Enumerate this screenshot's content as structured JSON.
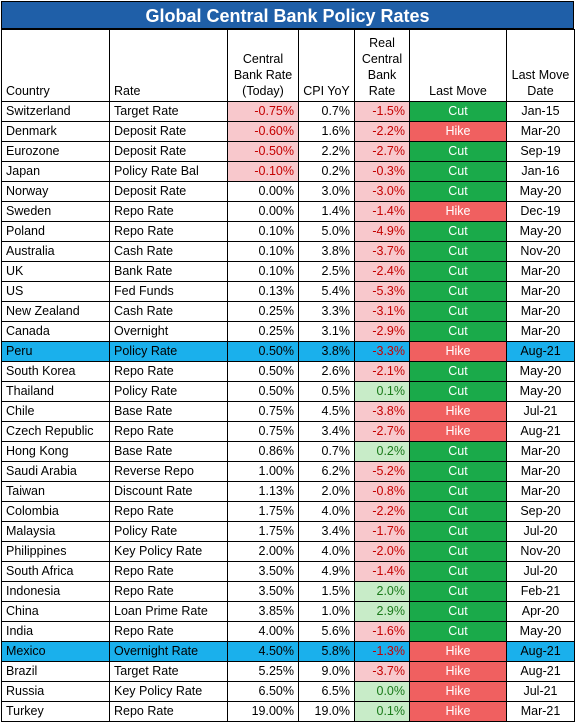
{
  "title": "Global Central Bank Policy Rates",
  "colors": {
    "header_bg": "#1f5fa8",
    "highlight_row": "#1ab0ec",
    "negative_fill": "#f8c8cc",
    "positive_fill": "#c8ecc8",
    "cut": "#1aaa4a",
    "hike": "#f06060"
  },
  "columns": {
    "country": "Country",
    "rate": "Rate",
    "cb_rate": "Central Bank Rate (Today)",
    "cpi": "CPI YoY",
    "real_rate": "Real Central Bank Rate",
    "last_move": "Last Move",
    "last_move_date": "Last Move Date"
  },
  "chart_data": {
    "type": "table",
    "title": "Global Central Bank Policy Rates",
    "headers": [
      "Country",
      "Rate",
      "Central Bank Rate (Today)",
      "CPI YoY",
      "Real Central Bank Rate",
      "Last Move",
      "Last Move Date"
    ],
    "highlighted_countries": [
      "Peru",
      "Mexico"
    ],
    "rows": [
      {
        "country": "Switzerland",
        "rate": "Target Rate",
        "cb_rate": "-0.75%",
        "cpi": "0.7%",
        "real_rate": "-1.5%",
        "move": "Cut",
        "date": "Jan-15"
      },
      {
        "country": "Denmark",
        "rate": "Deposit Rate",
        "cb_rate": "-0.60%",
        "cpi": "1.6%",
        "real_rate": "-2.2%",
        "move": "Hike",
        "date": "Mar-20"
      },
      {
        "country": "Eurozone",
        "rate": "Deposit Rate",
        "cb_rate": "-0.50%",
        "cpi": "2.2%",
        "real_rate": "-2.7%",
        "move": "Cut",
        "date": "Sep-19"
      },
      {
        "country": "Japan",
        "rate": "Policy Rate Bal",
        "cb_rate": "-0.10%",
        "cpi": "0.2%",
        "real_rate": "-0.3%",
        "move": "Cut",
        "date": "Jan-16"
      },
      {
        "country": "Norway",
        "rate": "Deposit Rate",
        "cb_rate": "0.00%",
        "cpi": "3.0%",
        "real_rate": "-3.0%",
        "move": "Cut",
        "date": "May-20"
      },
      {
        "country": "Sweden",
        "rate": "Repo Rate",
        "cb_rate": "0.00%",
        "cpi": "1.4%",
        "real_rate": "-1.4%",
        "move": "Hike",
        "date": "Dec-19"
      },
      {
        "country": "Poland",
        "rate": "Repo Rate",
        "cb_rate": "0.10%",
        "cpi": "5.0%",
        "real_rate": "-4.9%",
        "move": "Cut",
        "date": "May-20"
      },
      {
        "country": "Australia",
        "rate": "Cash Rate",
        "cb_rate": "0.10%",
        "cpi": "3.8%",
        "real_rate": "-3.7%",
        "move": "Cut",
        "date": "Nov-20"
      },
      {
        "country": "UK",
        "rate": "Bank Rate",
        "cb_rate": "0.10%",
        "cpi": "2.5%",
        "real_rate": "-2.4%",
        "move": "Cut",
        "date": "Mar-20"
      },
      {
        "country": "US",
        "rate": "Fed Funds",
        "cb_rate": "0.13%",
        "cpi": "5.4%",
        "real_rate": "-5.3%",
        "move": "Cut",
        "date": "Mar-20"
      },
      {
        "country": "New Zealand",
        "rate": "Cash Rate",
        "cb_rate": "0.25%",
        "cpi": "3.3%",
        "real_rate": "-3.1%",
        "move": "Cut",
        "date": "Mar-20"
      },
      {
        "country": "Canada",
        "rate": "Overnight",
        "cb_rate": "0.25%",
        "cpi": "3.1%",
        "real_rate": "-2.9%",
        "move": "Cut",
        "date": "Mar-20"
      },
      {
        "country": "Peru",
        "rate": "Policy Rate",
        "cb_rate": "0.50%",
        "cpi": "3.8%",
        "real_rate": "-3.3%",
        "move": "Hike",
        "date": "Aug-21"
      },
      {
        "country": "South Korea",
        "rate": "Repo Rate",
        "cb_rate": "0.50%",
        "cpi": "2.6%",
        "real_rate": "-2.1%",
        "move": "Cut",
        "date": "May-20"
      },
      {
        "country": "Thailand",
        "rate": "Policy Rate",
        "cb_rate": "0.50%",
        "cpi": "0.5%",
        "real_rate": "0.1%",
        "move": "Cut",
        "date": "May-20"
      },
      {
        "country": "Chile",
        "rate": "Base Rate",
        "cb_rate": "0.75%",
        "cpi": "4.5%",
        "real_rate": "-3.8%",
        "move": "Hike",
        "date": "Jul-21"
      },
      {
        "country": "Czech Republic",
        "rate": "Repo Rate",
        "cb_rate": "0.75%",
        "cpi": "3.4%",
        "real_rate": "-2.7%",
        "move": "Hike",
        "date": "Aug-21"
      },
      {
        "country": "Hong Kong",
        "rate": "Base Rate",
        "cb_rate": "0.86%",
        "cpi": "0.7%",
        "real_rate": "0.2%",
        "move": "Cut",
        "date": "Mar-20"
      },
      {
        "country": "Saudi Arabia",
        "rate": "Reverse Repo",
        "cb_rate": "1.00%",
        "cpi": "6.2%",
        "real_rate": "-5.2%",
        "move": "Cut",
        "date": "Mar-20"
      },
      {
        "country": "Taiwan",
        "rate": "Discount Rate",
        "cb_rate": "1.13%",
        "cpi": "2.0%",
        "real_rate": "-0.8%",
        "move": "Cut",
        "date": "Mar-20"
      },
      {
        "country": "Colombia",
        "rate": "Repo Rate",
        "cb_rate": "1.75%",
        "cpi": "4.0%",
        "real_rate": "-2.2%",
        "move": "Cut",
        "date": "Sep-20"
      },
      {
        "country": "Malaysia",
        "rate": "Policy Rate",
        "cb_rate": "1.75%",
        "cpi": "3.4%",
        "real_rate": "-1.7%",
        "move": "Cut",
        "date": "Jul-20"
      },
      {
        "country": "Philippines",
        "rate": "Key Policy Rate",
        "cb_rate": "2.00%",
        "cpi": "4.0%",
        "real_rate": "-2.0%",
        "move": "Cut",
        "date": "Nov-20"
      },
      {
        "country": "South Africa",
        "rate": "Repo Rate",
        "cb_rate": "3.50%",
        "cpi": "4.9%",
        "real_rate": "-1.4%",
        "move": "Cut",
        "date": "Jul-20"
      },
      {
        "country": "Indonesia",
        "rate": "Repo Rate",
        "cb_rate": "3.50%",
        "cpi": "1.5%",
        "real_rate": "2.0%",
        "move": "Cut",
        "date": "Feb-21"
      },
      {
        "country": "China",
        "rate": "Loan Prime Rate",
        "cb_rate": "3.85%",
        "cpi": "1.0%",
        "real_rate": "2.9%",
        "move": "Cut",
        "date": "Apr-20"
      },
      {
        "country": "India",
        "rate": "Repo Rate",
        "cb_rate": "4.00%",
        "cpi": "5.6%",
        "real_rate": "-1.6%",
        "move": "Cut",
        "date": "May-20"
      },
      {
        "country": "Mexico",
        "rate": "Overnight Rate",
        "cb_rate": "4.50%",
        "cpi": "5.8%",
        "real_rate": "-1.3%",
        "move": "Hike",
        "date": "Aug-21"
      },
      {
        "country": "Brazil",
        "rate": "Target Rate",
        "cb_rate": "5.25%",
        "cpi": "9.0%",
        "real_rate": "-3.7%",
        "move": "Hike",
        "date": "Aug-21"
      },
      {
        "country": "Russia",
        "rate": "Key Policy Rate",
        "cb_rate": "6.50%",
        "cpi": "6.5%",
        "real_rate": "0.0%",
        "move": "Hike",
        "date": "Jul-21"
      },
      {
        "country": "Turkey",
        "rate": "Repo Rate",
        "cb_rate": "19.00%",
        "cpi": "19.0%",
        "real_rate": "0.1%",
        "move": "Hike",
        "date": "Mar-21"
      }
    ]
  }
}
